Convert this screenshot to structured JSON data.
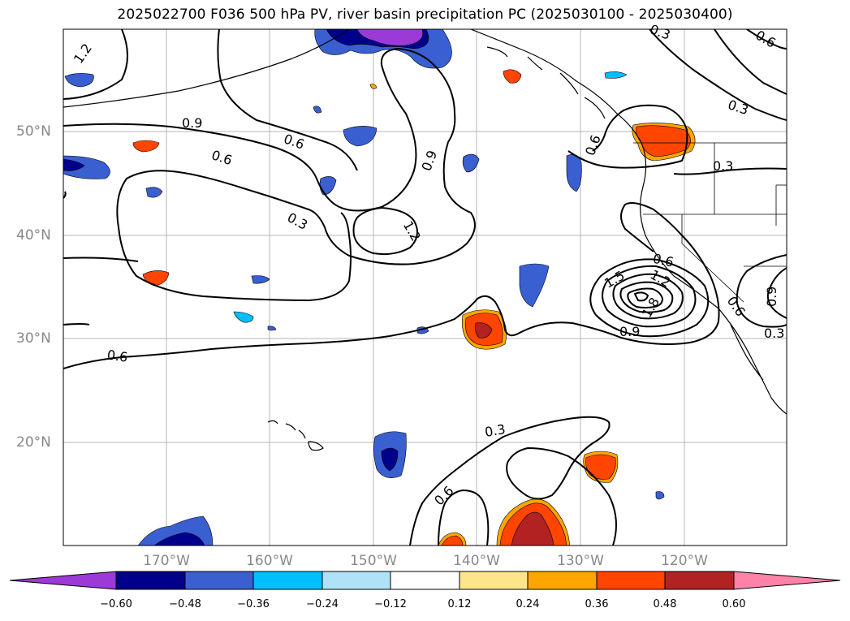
{
  "title": "2025022700 F036 500 hPa PV, river basin precipitation PC (2025030100 - 2025030400)",
  "lat_labels": [
    "50°N",
    "40°N",
    "30°N",
    "20°N"
  ],
  "lon_labels": [
    "170°W",
    "160°W",
    "150°W",
    "140°W",
    "130°W",
    "120°W"
  ],
  "colorbar": {
    "ticks": [
      "−0.60",
      "−0.48",
      "−0.36",
      "−0.24",
      "−0.12",
      "0.12",
      "0.24",
      "0.36",
      "0.48",
      "0.60"
    ],
    "colors": [
      "#9b3ad6",
      "#00008b",
      "#3a5fd1",
      "#00bfff",
      "#b0e2f7",
      "#ffffff",
      "#fde68a",
      "#ffa500",
      "#ff4500",
      "#b22222",
      "#ff82a8"
    ]
  },
  "contour_labels": [
    "1.2",
    "0.9",
    "0.6",
    "0.6",
    "0.3",
    "0.6",
    "0.9",
    "1.2",
    "0.6",
    "0.3",
    "0.3",
    "0.6",
    "1.5",
    "1.2",
    "1.8",
    "0.9",
    "0.6",
    "0.9",
    "0.3",
    "0.3",
    "0.6",
    "0.3",
    "0.6"
  ],
  "colors": {
    "grid": "#b5b5b5",
    "axis_label": "#888888",
    "contour": "#000000"
  }
}
